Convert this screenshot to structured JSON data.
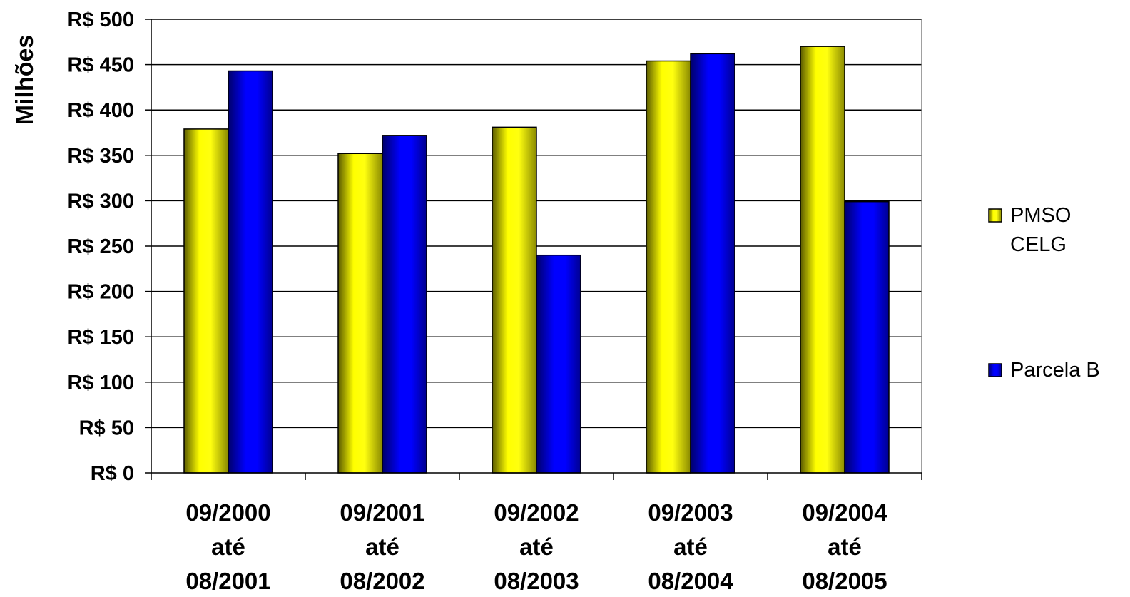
{
  "chart_data": {
    "type": "bar",
    "ylabel": "Milhões",
    "xlabel": "",
    "title": "",
    "ylim": [
      0,
      500
    ],
    "y_step": 50,
    "y_tick_format": "R$ {v}",
    "grid": true,
    "legend_position": "right",
    "categories": [
      [
        "09/2000",
        "até",
        "08/2001"
      ],
      [
        "09/2001",
        "até",
        "08/2002"
      ],
      [
        "09/2002",
        "até",
        "08/2003"
      ],
      [
        "09/2003",
        "até",
        "08/2004"
      ],
      [
        "09/2004",
        "até",
        "08/2005"
      ]
    ],
    "series": [
      {
        "name": [
          "PMSO",
          "CELG"
        ],
        "color": "#ffff00",
        "values": [
          379,
          352,
          381,
          454,
          470
        ]
      },
      {
        "name": [
          "Parcela B"
        ],
        "color": "#0000ff",
        "values": [
          443,
          372,
          240,
          462,
          299
        ]
      }
    ]
  }
}
